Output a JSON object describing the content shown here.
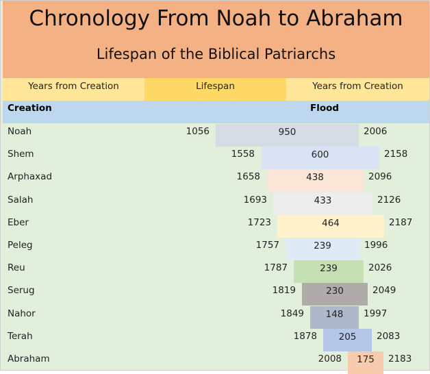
{
  "header": {
    "title": "Chronology From Noah to Abraham",
    "subtitle": "Lifespan of the Biblical Patriarchs"
  },
  "subheader": {
    "left": "Years from Creation",
    "middle": "Lifespan",
    "right": "Years from Creation"
  },
  "bands": {
    "left": "Creation",
    "right": "Flood"
  },
  "chart_data": {
    "type": "bar",
    "subtype": "floating-bar",
    "title": "Chronology From Noah to Abraham",
    "subtitle": "Lifespan of the Biblical Patriarchs",
    "rows": [
      {
        "name": "Noah",
        "start": 1056,
        "lifespan": 950,
        "end": 2006,
        "color": "#d6dce5"
      },
      {
        "name": "Shem",
        "start": 1558,
        "lifespan": 600,
        "end": 2158,
        "color": "#dae3f3"
      },
      {
        "name": "Arphaxad",
        "start": 1658,
        "lifespan": 438,
        "end": 2096,
        "color": "#fbe5d6"
      },
      {
        "name": "Salah",
        "start": 1693,
        "lifespan": 433,
        "end": 2126,
        "color": "#ededed"
      },
      {
        "name": "Eber",
        "start": 1723,
        "lifespan": 464,
        "end": 2187,
        "color": "#fff2cc"
      },
      {
        "name": "Peleg",
        "start": 1757,
        "lifespan": 239,
        "end": 1996,
        "color": "#deebf7"
      },
      {
        "name": "Reu",
        "start": 1787,
        "lifespan": 239,
        "end": 2026,
        "color": "#c5e0b4"
      },
      {
        "name": "Serug",
        "start": 1819,
        "lifespan": 230,
        "end": 2049,
        "color": "#afabab"
      },
      {
        "name": "Nahor",
        "start": 1849,
        "lifespan": 148,
        "end": 1997,
        "color": "#adb9ca"
      },
      {
        "name": "Terah",
        "start": 1878,
        "lifespan": 205,
        "end": 2083,
        "color": "#b4c7e7"
      },
      {
        "name": "Abraham",
        "start": 2008,
        "lifespan": 175,
        "end": 2183,
        "color": "#f8cbad"
      }
    ]
  }
}
